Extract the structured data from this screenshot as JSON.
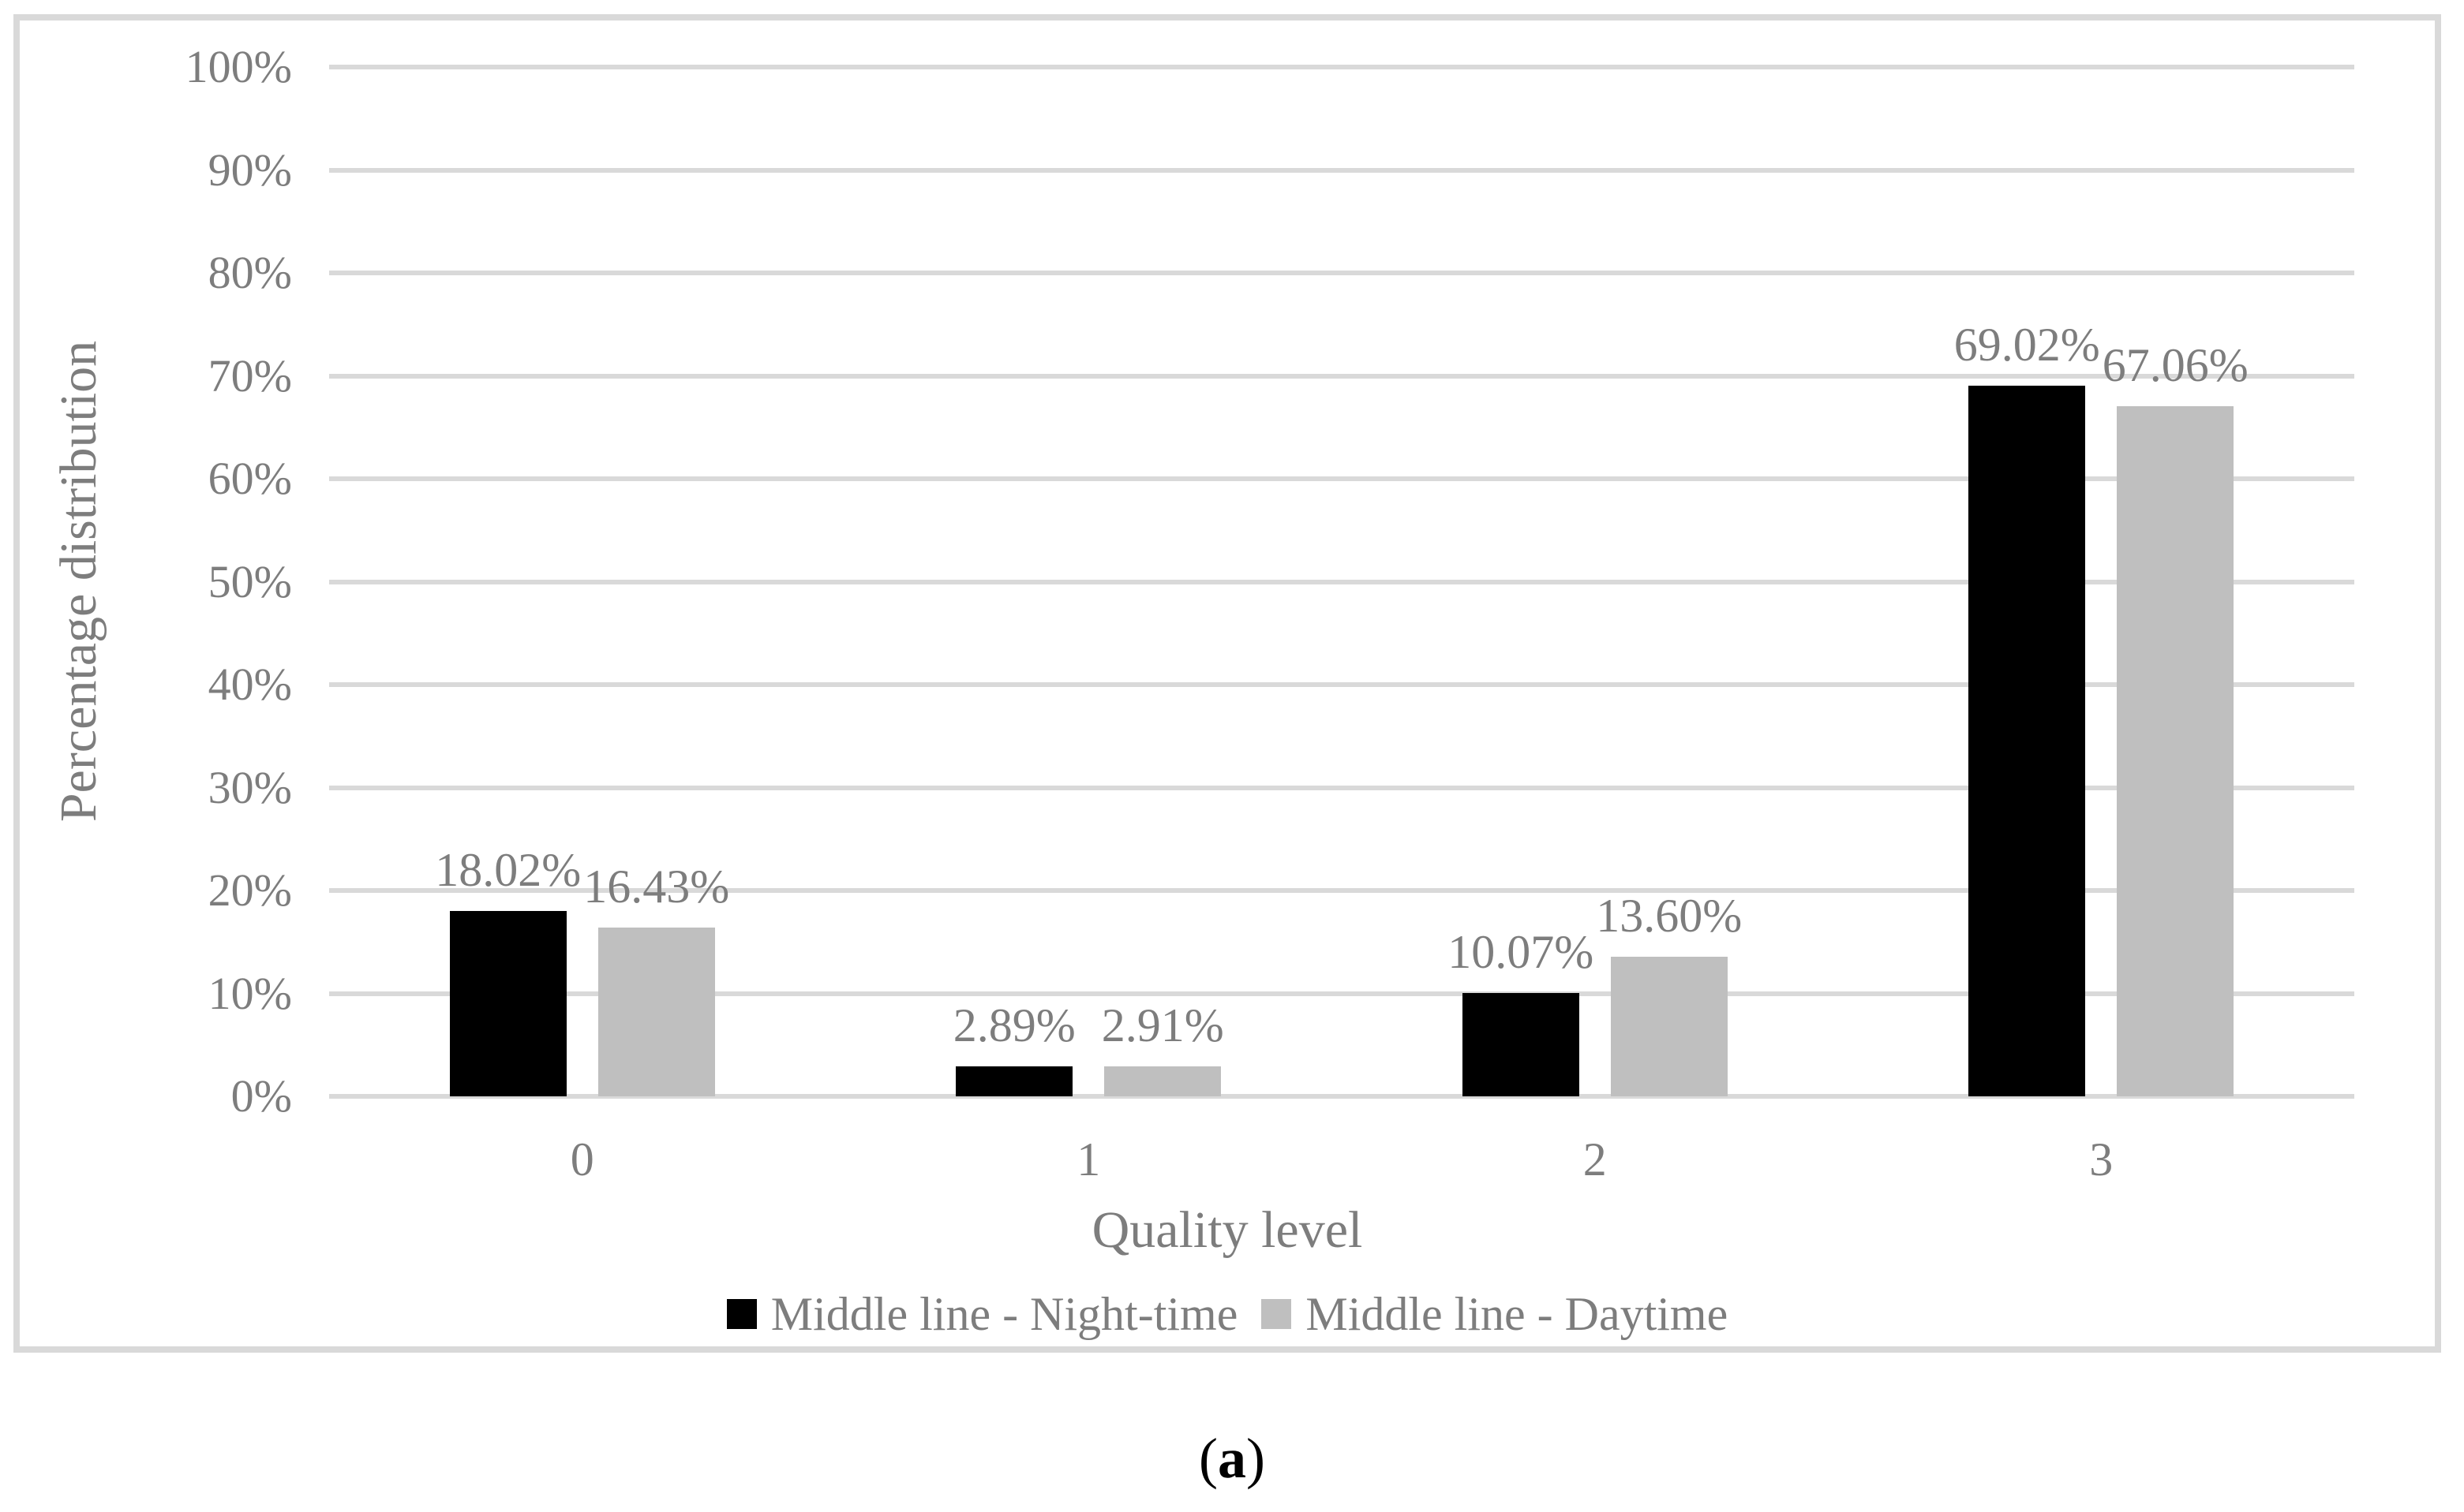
{
  "figure": {
    "caption": {
      "open": "(",
      "letter": "a",
      "close": ")"
    }
  },
  "chart_data": {
    "type": "bar",
    "title": "",
    "xlabel": "Quality level",
    "ylabel": "Percentage distribution",
    "categories": [
      "0",
      "1",
      "2",
      "3"
    ],
    "series": [
      {
        "name": "Middle line - Night-time",
        "color": "#000000",
        "values": [
          18.02,
          2.89,
          10.07,
          69.02
        ],
        "labels": [
          "18.02%",
          "2.89%",
          "10.07%",
          "69.02%"
        ]
      },
      {
        "name": "Middle line - Daytime",
        "color": "#bfbfbf",
        "values": [
          16.43,
          2.91,
          13.6,
          67.06
        ],
        "labels": [
          "16.43%",
          "2.91%",
          "13.60%",
          "67.06%"
        ]
      }
    ],
    "y_axis": {
      "min": 0,
      "max": 100,
      "step": 10,
      "tick_labels": [
        "0%",
        "10%",
        "20%",
        "30%",
        "40%",
        "50%",
        "60%",
        "70%",
        "80%",
        "90%",
        "100%"
      ]
    },
    "grid": true,
    "legend_position": "bottom",
    "colors": {
      "gridline": "#d9d9d9",
      "frame_border": "#d9d9d9",
      "axis_text": "#7d7d7d",
      "caption_text": "#000000"
    }
  }
}
